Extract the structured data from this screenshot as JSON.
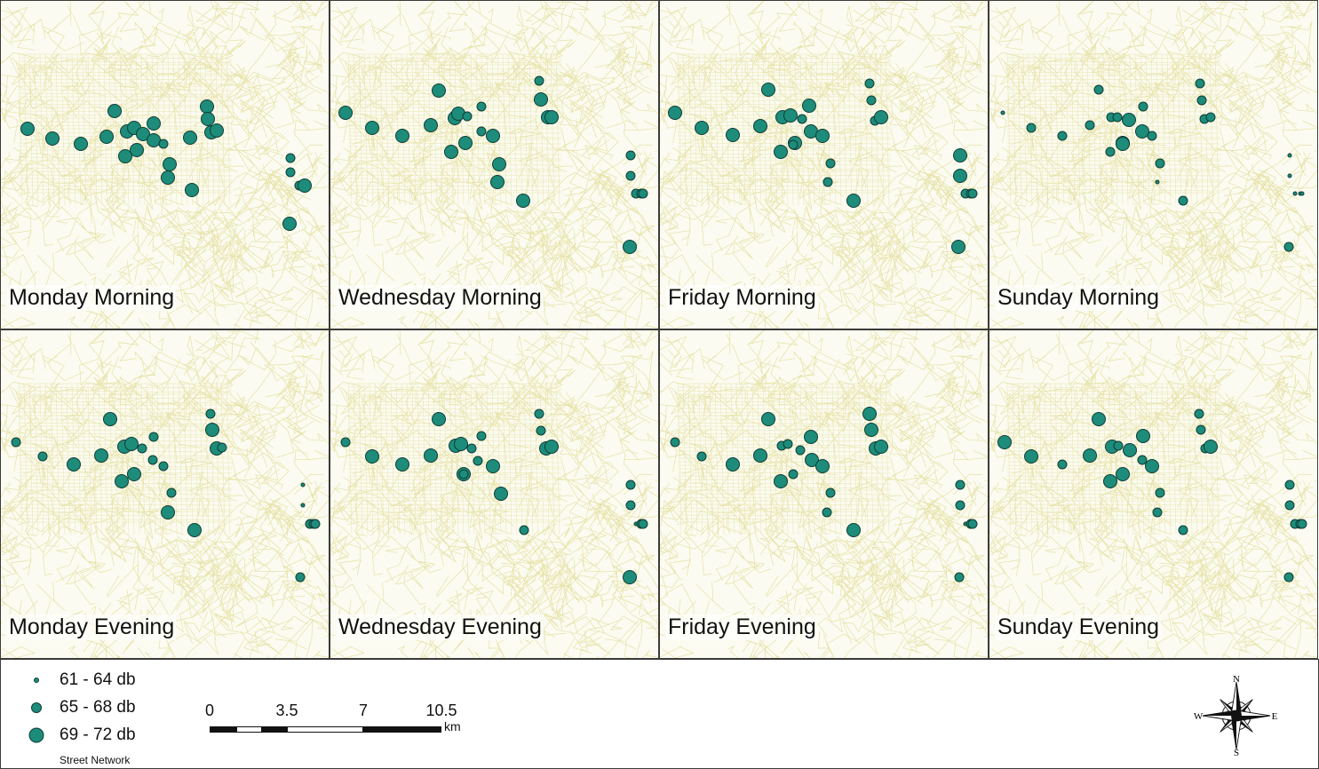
{
  "panels": [
    {
      "label": "Monday Morning"
    },
    {
      "label": "Wednesday Morning"
    },
    {
      "label": "Friday Morning"
    },
    {
      "label": "Sunday Morning"
    },
    {
      "label": "Monday Evening"
    },
    {
      "label": "Wednesday Evening"
    },
    {
      "label": "Friday Evening"
    },
    {
      "label": "Sunday Evening"
    }
  ],
  "legend": {
    "classes": [
      {
        "label": "61 - 64 db"
      },
      {
        "label": "65 - 68 db"
      },
      {
        "label": "69 - 72 db"
      }
    ],
    "street_network": "Street Network"
  },
  "scalebar": {
    "ticks": [
      "0",
      "3.5",
      "7",
      "10.5"
    ],
    "unit": "km"
  },
  "compass": {
    "n": "N",
    "s": "S",
    "e": "E",
    "w": "W"
  },
  "colors": {
    "point_fill": "#1d8c7a",
    "point_stroke": "#0e3d36",
    "street": "#e6e2a6",
    "background": "#fbfbf1"
  },
  "noise_levels": {
    "legend_order": [
      "61-64 db",
      "65-68 db",
      "69-72 db"
    ],
    "note_classes": [
      1,
      2,
      3
    ]
  }
}
